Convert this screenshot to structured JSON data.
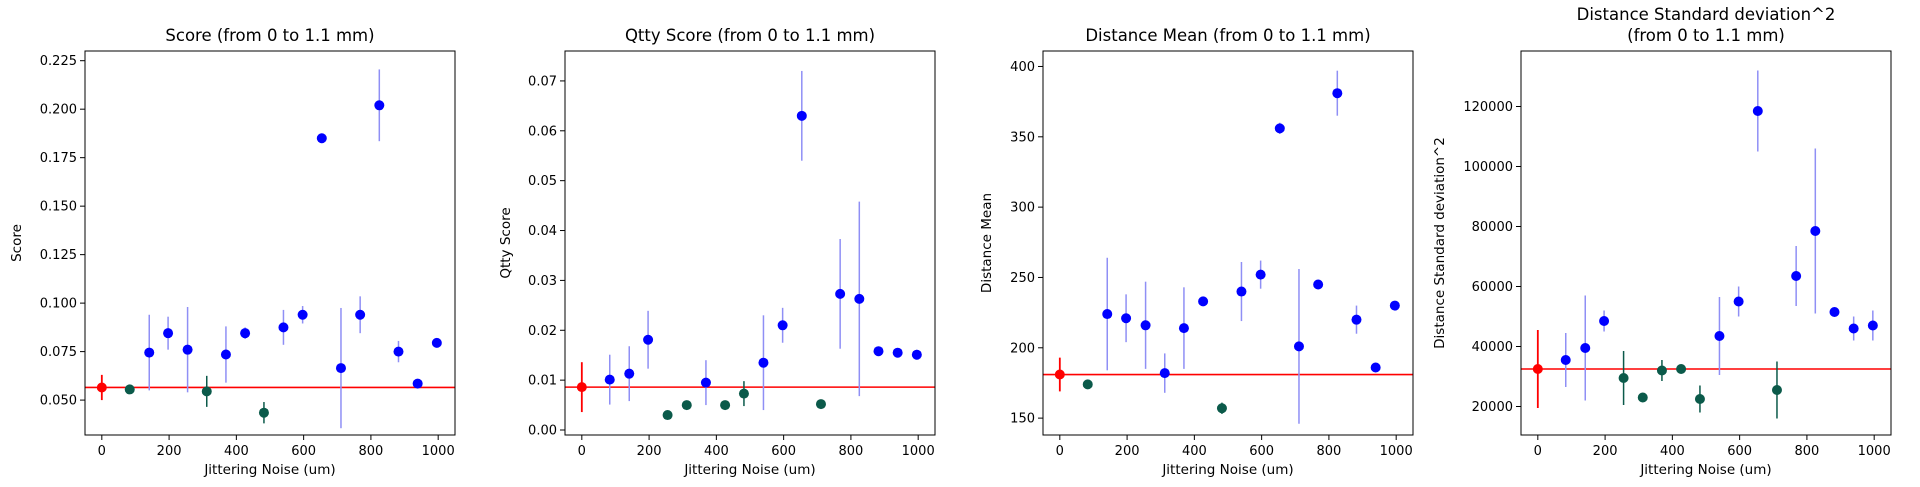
{
  "chart_data": [
    {
      "type": "scatter",
      "title": [
        "Score (from 0 to 1.1 mm)"
      ],
      "xlabel": "Jittering Noise (um)",
      "ylabel": "Score",
      "xlim": [
        -50,
        1050
      ],
      "ylim": [
        0.032,
        0.23
      ],
      "xticks": [
        0,
        200,
        400,
        600,
        800,
        1000
      ],
      "yticks": [
        0.05,
        0.075,
        0.1,
        0.125,
        0.15,
        0.175,
        0.2,
        0.225
      ],
      "ytick_labels": [
        "0.050",
        "0.075",
        "0.100",
        "0.125",
        "0.150",
        "0.175",
        "0.200",
        "0.225"
      ],
      "reference_line": 0.0565,
      "baseline": {
        "x": 0,
        "y": 0.0565,
        "err": 0.0065
      },
      "improved": [
        {
          "x": 83,
          "y": 0.0555,
          "err": 0.0015
        },
        {
          "x": 312,
          "y": 0.0545,
          "err": 0.008
        },
        {
          "x": 482,
          "y": 0.0435,
          "err": 0.0055
        }
      ],
      "degraded": [
        {
          "x": 141,
          "y": 0.0745,
          "err": 0.0195
        },
        {
          "x": 197,
          "y": 0.0845,
          "err": 0.0085
        },
        {
          "x": 255,
          "y": 0.076,
          "err": 0.022
        },
        {
          "x": 369,
          "y": 0.0735,
          "err": 0.0145
        },
        {
          "x": 426,
          "y": 0.0845,
          "err": 0.003
        },
        {
          "x": 540,
          "y": 0.0875,
          "err": 0.009
        },
        {
          "x": 597,
          "y": 0.094,
          "err": 0.0045
        },
        {
          "x": 654,
          "y": 0.185,
          "err": 0.0025
        },
        {
          "x": 711,
          "y": 0.0665,
          "err": 0.031
        },
        {
          "x": 768,
          "y": 0.094,
          "err": 0.0095
        },
        {
          "x": 825,
          "y": 0.202,
          "err": 0.0185
        },
        {
          "x": 882,
          "y": 0.075,
          "err": 0.0055
        },
        {
          "x": 939,
          "y": 0.0585,
          "err": 0.001
        },
        {
          "x": 996,
          "y": 0.0795,
          "err": 0.001
        }
      ]
    },
    {
      "type": "scatter",
      "title": [
        "Qtty Score (from 0 to 1.1 mm)"
      ],
      "xlabel": "Jittering Noise (um)",
      "ylabel": "Qtty Score",
      "xlim": [
        -50,
        1050
      ],
      "ylim": [
        -0.001,
        0.076
      ],
      "xticks": [
        0,
        200,
        400,
        600,
        800,
        1000
      ],
      "yticks": [
        0,
        0.01,
        0.02,
        0.03,
        0.04,
        0.05,
        0.06,
        0.07
      ],
      "ytick_labels": [
        "0.00",
        "0.01",
        "0.02",
        "0.03",
        "0.04",
        "0.05",
        "0.06",
        "0.07"
      ],
      "reference_line": 0.0086,
      "baseline": {
        "x": 0,
        "y": 0.0086,
        "err": 0.005
      },
      "improved": [
        {
          "x": 255,
          "y": 0.003,
          "err": 0.0005
        },
        {
          "x": 312,
          "y": 0.005,
          "err": 0.0005
        },
        {
          "x": 426,
          "y": 0.005,
          "err": 0.0005
        },
        {
          "x": 482,
          "y": 0.0073,
          "err": 0.0025
        },
        {
          "x": 711,
          "y": 0.0052,
          "err": 0.0005
        }
      ],
      "degraded": [
        {
          "x": 83,
          "y": 0.0101,
          "err": 0.005
        },
        {
          "x": 141,
          "y": 0.0113,
          "err": 0.0055
        },
        {
          "x": 197,
          "y": 0.0181,
          "err": 0.0058
        },
        {
          "x": 369,
          "y": 0.0095,
          "err": 0.0045
        },
        {
          "x": 540,
          "y": 0.0135,
          "err": 0.0095
        },
        {
          "x": 597,
          "y": 0.021,
          "err": 0.0035
        },
        {
          "x": 654,
          "y": 0.063,
          "err": 0.009
        },
        {
          "x": 768,
          "y": 0.0273,
          "err": 0.011
        },
        {
          "x": 825,
          "y": 0.0263,
          "err": 0.0195
        },
        {
          "x": 882,
          "y": 0.0158,
          "err": 0.0005
        },
        {
          "x": 939,
          "y": 0.0155,
          "err": 0.0005
        },
        {
          "x": 996,
          "y": 0.0151,
          "err": 0.001
        }
      ]
    },
    {
      "type": "scatter",
      "title": [
        "Distance Mean (from 0 to 1.1 mm)"
      ],
      "xlabel": "Jittering Noise (um)",
      "ylabel": "Distance Mean",
      "xlim": [
        -50,
        1050
      ],
      "ylim": [
        138,
        411
      ],
      "xticks": [
        0,
        200,
        400,
        600,
        800,
        1000
      ],
      "yticks": [
        150,
        200,
        250,
        300,
        350,
        400
      ],
      "ytick_labels": [
        "150",
        "200",
        "250",
        "300",
        "350",
        "400"
      ],
      "reference_line": 181,
      "baseline": {
        "x": 0,
        "y": 181,
        "err": 12
      },
      "improved": [
        {
          "x": 83,
          "y": 174,
          "err": 2
        },
        {
          "x": 482,
          "y": 157,
          "err": 4
        }
      ],
      "degraded": [
        {
          "x": 141,
          "y": 224,
          "err": 40
        },
        {
          "x": 197,
          "y": 221,
          "err": 17
        },
        {
          "x": 255,
          "y": 216,
          "err": 31
        },
        {
          "x": 312,
          "y": 182,
          "err": 14
        },
        {
          "x": 369,
          "y": 214,
          "err": 29
        },
        {
          "x": 426,
          "y": 233,
          "err": 3
        },
        {
          "x": 540,
          "y": 240,
          "err": 21
        },
        {
          "x": 597,
          "y": 252,
          "err": 10
        },
        {
          "x": 654,
          "y": 356,
          "err": 4
        },
        {
          "x": 711,
          "y": 201,
          "err": 55
        },
        {
          "x": 768,
          "y": 245,
          "err": 3
        },
        {
          "x": 825,
          "y": 381,
          "err": 16
        },
        {
          "x": 882,
          "y": 220,
          "err": 10
        },
        {
          "x": 939,
          "y": 186,
          "err": 2
        },
        {
          "x": 996,
          "y": 230,
          "err": 1
        }
      ]
    },
    {
      "type": "scatter",
      "title": [
        "Distance Standard deviation^2",
        "(from 0 to 1.1 mm)"
      ],
      "xlabel": "Jittering Noise (um)",
      "ylabel": "Distance Standard deviation^2",
      "xlim": [
        -50,
        1050
      ],
      "ylim": [
        10500,
        138500
      ],
      "xticks": [
        0,
        200,
        400,
        600,
        800,
        1000
      ],
      "yticks": [
        20000,
        40000,
        60000,
        80000,
        100000,
        120000
      ],
      "ytick_labels": [
        "20000",
        "40000",
        "60000",
        "80000",
        "100000",
        "120000"
      ],
      "reference_line": 32500,
      "baseline": {
        "x": 0,
        "y": 32500,
        "err": 13000
      },
      "improved": [
        {
          "x": 255,
          "y": 29500,
          "err": 9000
        },
        {
          "x": 312,
          "y": 23000,
          "err": 1500
        },
        {
          "x": 369,
          "y": 32000,
          "err": 3500
        },
        {
          "x": 426,
          "y": 32500,
          "err": 1000
        },
        {
          "x": 482,
          "y": 22500,
          "err": 4500
        },
        {
          "x": 711,
          "y": 25500,
          "err": 9500
        }
      ],
      "degraded": [
        {
          "x": 83,
          "y": 35500,
          "err": 9000
        },
        {
          "x": 141,
          "y": 39500,
          "err": 17500
        },
        {
          "x": 197,
          "y": 48500,
          "err": 3500
        },
        {
          "x": 540,
          "y": 43500,
          "err": 13000
        },
        {
          "x": 597,
          "y": 55000,
          "err": 5000
        },
        {
          "x": 654,
          "y": 118500,
          "err": 13500
        },
        {
          "x": 768,
          "y": 63500,
          "err": 10000
        },
        {
          "x": 825,
          "y": 78500,
          "err": 27500
        },
        {
          "x": 882,
          "y": 51500,
          "err": 1000
        },
        {
          "x": 939,
          "y": 46000,
          "err": 4000
        },
        {
          "x": 996,
          "y": 47000,
          "err": 5000
        }
      ]
    }
  ],
  "colors": {
    "baseline": "#ff0000",
    "improved": "#0b5a4a",
    "degraded": "#0000ff",
    "degraded_err": "#8f8ff5",
    "reference_line": "#ff0000"
  }
}
